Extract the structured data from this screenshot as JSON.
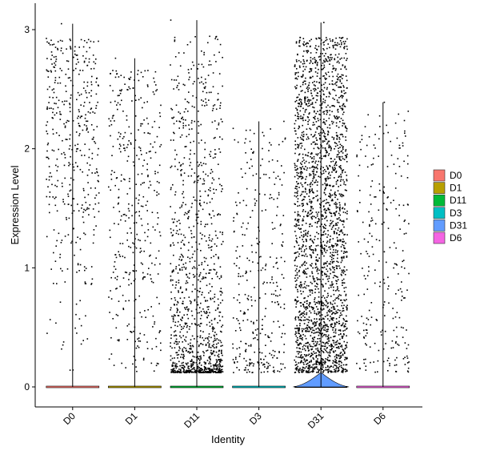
{
  "chart_data": {
    "type": "violin-jitter",
    "title": "",
    "xlabel": "Identity",
    "ylabel": "Expression Level",
    "ylim": [
      -0.17,
      3.25
    ],
    "yticks": [
      0,
      1,
      2,
      3
    ],
    "grid": false,
    "legend_position": "right",
    "categories": [
      "D0",
      "D1",
      "D11",
      "D3",
      "D31",
      "D6"
    ],
    "groups": [
      {
        "name": "D0",
        "color": "#F8766D",
        "max": 3.05,
        "zero_fraction": 0.64,
        "n_points": 1200,
        "shape": 0.55,
        "violin_peak": 0.0
      },
      {
        "name": "D1",
        "color": "#B79F00",
        "max": 2.76,
        "zero_fraction": 0.66,
        "n_points": 1150,
        "shape": 0.8,
        "violin_peak": 0.0
      },
      {
        "name": "D11",
        "color": "#00BA38",
        "max": 3.08,
        "zero_fraction": 0.58,
        "n_points": 2700,
        "shape": 2.4,
        "violin_peak": 0.0
      },
      {
        "name": "D3",
        "color": "#00BFC4",
        "max": 2.23,
        "zero_fraction": 0.7,
        "n_points": 1100,
        "shape": 1.7,
        "violin_peak": 0.0
      },
      {
        "name": "D31",
        "color": "#619CFF",
        "max": 3.06,
        "zero_fraction": 0.42,
        "n_points": 4200,
        "shape": 1.3,
        "violin_peak": 0.12
      },
      {
        "name": "D6",
        "color": "#F564E3",
        "max": 2.39,
        "zero_fraction": 0.72,
        "n_points": 900,
        "shape": 1.2,
        "violin_peak": 0.0
      }
    ]
  }
}
